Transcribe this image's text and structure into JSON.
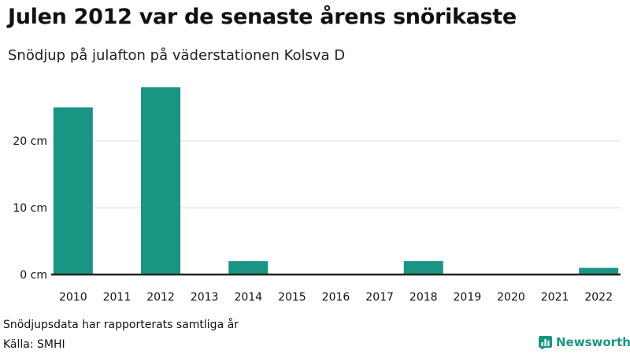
{
  "header": {
    "title": "Julen 2012 var de senaste årens snörikaste",
    "subtitle": "Snödjup på julafton på väderstationen Kolsva D"
  },
  "footer": {
    "note": "Snödjupsdata har rapporterats samtliga år",
    "source": "Källa: SMHI",
    "brand": "Newsworthy"
  },
  "colors": {
    "bar": "#1a9583",
    "grid": "#dddddd",
    "axis": "#222222",
    "brand": "#1a9583"
  },
  "chart_data": {
    "type": "bar",
    "title": "Julen 2012 var de senaste årens snörikaste",
    "subtitle": "Snödjup på julafton på väderstationen Kolsva D",
    "xlabel": "",
    "ylabel": "",
    "categories": [
      "2010",
      "2011",
      "2012",
      "2013",
      "2014",
      "2015",
      "2016",
      "2017",
      "2018",
      "2019",
      "2020",
      "2021",
      "2022"
    ],
    "values": [
      25,
      0,
      28,
      0,
      2,
      0,
      0,
      0,
      2,
      0,
      0,
      0,
      1
    ],
    "ylim": [
      0,
      30
    ],
    "yticks": [
      0,
      10,
      20
    ],
    "ytick_labels": [
      "0 cm",
      "10 cm",
      "20 cm"
    ],
    "grid": true,
    "legend": "none"
  }
}
